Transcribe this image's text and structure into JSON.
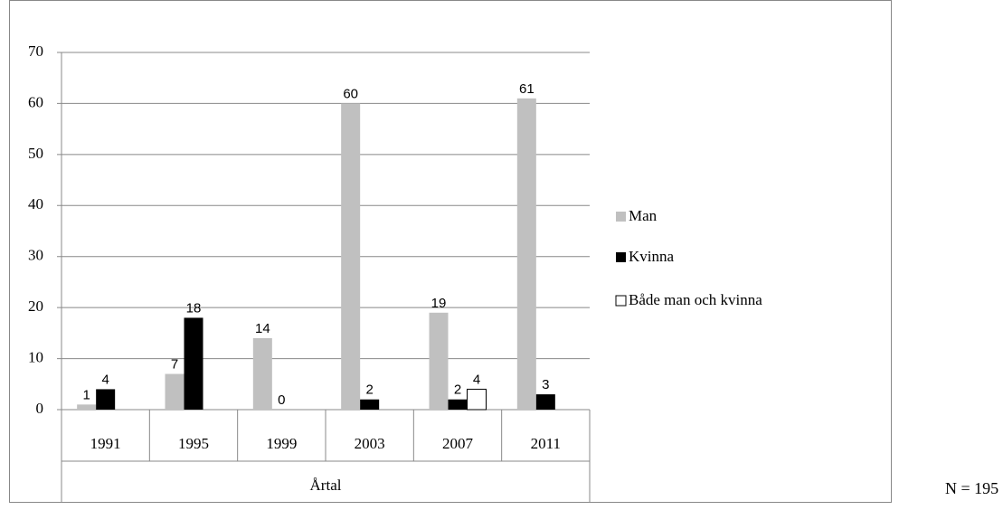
{
  "chart_data": {
    "type": "bar",
    "categories": [
      "1991",
      "1995",
      "1999",
      "2003",
      "2007",
      "2011"
    ],
    "x_label": "Årtal",
    "annotation": "N = 195",
    "series": [
      {
        "name": "Man",
        "color": "#c0c0c0",
        "values": [
          1,
          7,
          14,
          60,
          19,
          61
        ]
      },
      {
        "name": "Kvinna",
        "color": "#000000",
        "values": [
          4,
          18,
          0,
          2,
          2,
          3
        ]
      },
      {
        "name": "Både man och kvinna",
        "color": "#ffffff",
        "values": [
          null,
          null,
          null,
          null,
          4,
          null
        ]
      }
    ],
    "ylim": [
      0,
      70
    ],
    "yticks": [
      0,
      10,
      20,
      30,
      40,
      50,
      60,
      70
    ],
    "grid": true,
    "legend": "right"
  }
}
